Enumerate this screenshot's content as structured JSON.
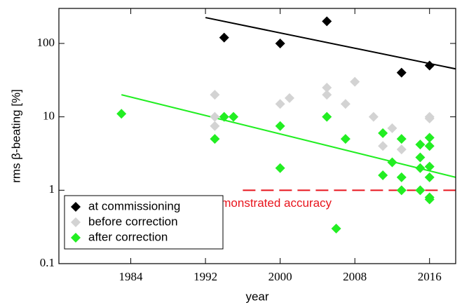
{
  "chart_data": {
    "type": "scatter",
    "xlabel": "year",
    "ylabel": "rms β-beating [%]",
    "xlim": [
      1976.3,
      2018.8
    ],
    "xticks": [
      1984,
      1992,
      2000,
      2008,
      2016
    ],
    "ylim": [
      0.1,
      300
    ],
    "yticks": [
      0.1,
      1,
      10,
      100
    ],
    "log_y": true,
    "legend": "lower left",
    "series": [
      {
        "name": "at commissioning",
        "color": "#000000",
        "x": [
          1994,
          2000,
          2005,
          2013,
          2016
        ],
        "values": [
          120,
          100,
          200,
          40,
          50
        ]
      },
      {
        "name": "before correction",
        "color": "#d3d3d3",
        "x": [
          1993,
          1993,
          1993,
          2000,
          2001,
          2005,
          2005,
          2007,
          2008,
          2010,
          2011,
          2012,
          2013,
          2016,
          2016
        ],
        "values": [
          20,
          10,
          7.5,
          15,
          18,
          25,
          20,
          15,
          30,
          10,
          4,
          7,
          3.6,
          10,
          9.5
        ]
      },
      {
        "name": "after correction",
        "color": "#22ee22",
        "x": [
          1983,
          1993,
          1994,
          1995,
          2000,
          2000,
          2005,
          2006,
          2007,
          2011,
          2011,
          2012,
          2013,
          2013,
          2013,
          2015,
          2015,
          2015,
          2015,
          2016,
          2016,
          2016,
          2016,
          2016,
          2016
        ],
        "values": [
          11,
          5,
          10,
          10,
          7.5,
          2,
          10,
          0.3,
          5,
          6,
          1.6,
          2.4,
          5,
          1.5,
          1,
          4.2,
          2.8,
          2,
          1,
          5.2,
          4,
          2.1,
          1.5,
          0.8,
          0.75
        ]
      }
    ],
    "fits": [
      {
        "color": "#000000",
        "x": [
          1992,
          2018.8
        ],
        "values": [
          225,
          45
        ]
      },
      {
        "color": "#22ee22",
        "x": [
          1983,
          2018.8
        ],
        "values": [
          20,
          1.5
        ]
      }
    ],
    "reference": {
      "label": "demonstrated accuracy",
      "color": "#e8141c",
      "x": [
        1996,
        2018.8
      ],
      "values": [
        1,
        1
      ]
    }
  }
}
